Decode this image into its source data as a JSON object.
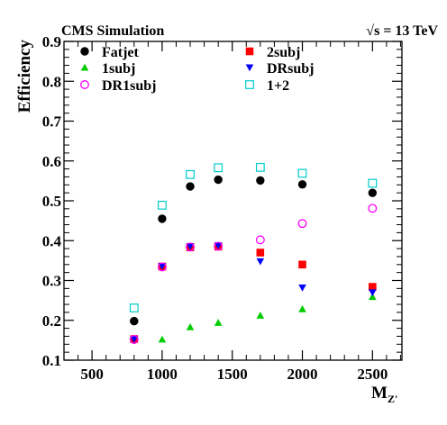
{
  "chart_data": {
    "type": "scatter",
    "header_left": "CMS Simulation",
    "header_right": "= 13 TeV",
    "header_right_symbol": "√s",
    "xlabel": "M",
    "xlabel_sub": "Z'",
    "ylabel": "Efficiency",
    "xlim": [
      300,
      2710
    ],
    "ylim": [
      0.1,
      0.9
    ],
    "xticks": [
      500,
      1000,
      1500,
      2000,
      2500
    ],
    "xtick_labels": [
      "500",
      "1000",
      "1500",
      "2000",
      "2500"
    ],
    "yticks": [
      0.1,
      0.2,
      0.3,
      0.4,
      0.5,
      0.6,
      0.7,
      0.8,
      0.9
    ],
    "ytick_labels": [
      "0.1",
      "0.2",
      "0.3",
      "0.4",
      "0.5",
      "0.6",
      "0.7",
      "0.8",
      "0.9"
    ],
    "grid": false,
    "legend_position": "top, two columns",
    "series": [
      {
        "name": "Fatjet",
        "marker": "filled-circle",
        "color": "#000000",
        "x": [
          800,
          1000,
          1200,
          1400,
          1700,
          2000,
          2500
        ],
        "y": [
          0.198,
          0.455,
          0.536,
          0.553,
          0.551,
          0.541,
          0.52
        ]
      },
      {
        "name": "2subj",
        "marker": "filled-square",
        "color": "#ff0000",
        "x": [
          800,
          1000,
          1200,
          1400,
          1700,
          2000,
          2500
        ],
        "y": [
          0.153,
          0.335,
          0.383,
          0.385,
          0.37,
          0.34,
          0.284
        ]
      },
      {
        "name": "1subj",
        "marker": "filled-triangle-up",
        "color": "#00cc00",
        "x": [
          1000,
          1200,
          1400,
          1700,
          2000,
          2500
        ],
        "y": [
          0.152,
          0.183,
          0.194,
          0.212,
          0.228,
          0.259
        ]
      },
      {
        "name": "DRsubj",
        "marker": "filled-triangle-down",
        "color": "#0000ff",
        "x": [
          800,
          1000,
          1200,
          1400,
          1700,
          2000,
          2500
        ],
        "y": [
          0.153,
          0.336,
          0.386,
          0.388,
          0.348,
          0.282,
          0.27
        ]
      },
      {
        "name": "DR1subj",
        "marker": "open-circle",
        "color": "#ff00ff",
        "x": [
          800,
          1000,
          1200,
          1400,
          1700,
          2000,
          2500
        ],
        "y": [
          0.152,
          0.334,
          0.384,
          0.386,
          0.402,
          0.443,
          0.481
        ]
      },
      {
        "name": "1+2",
        "marker": "open-square",
        "color": "#00cccc",
        "x": [
          800,
          1000,
          1200,
          1400,
          1700,
          2000,
          2500
        ],
        "y": [
          0.231,
          0.489,
          0.566,
          0.583,
          0.584,
          0.569,
          0.544
        ]
      }
    ]
  }
}
